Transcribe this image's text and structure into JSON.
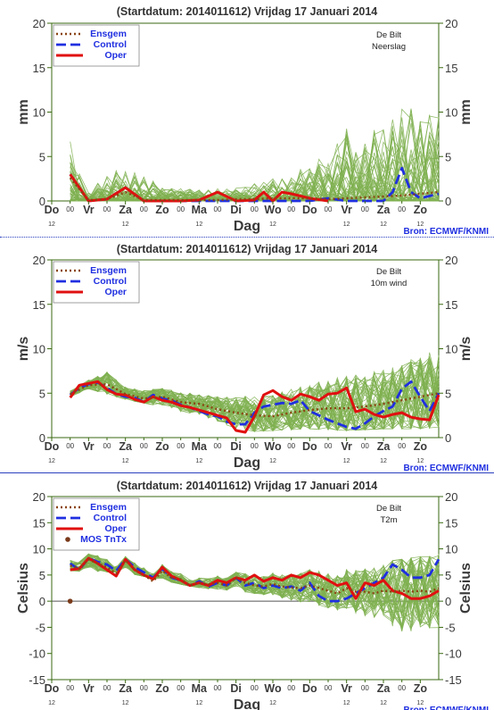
{
  "panels": [
    {
      "title": "(Startdatum: 2014011612)   Vrijdag   17 Januari   2014",
      "location": "De Bilt",
      "variable": "Neerslag",
      "ylabel": "mm",
      "xlabel": "Dag",
      "source": "Bron: ECMWF/KNMI",
      "legend": [
        "Ensgem",
        "Control",
        "Oper"
      ]
    },
    {
      "title": "(Startdatum: 2014011612)   Vrijdag   17 Januari   2014",
      "location": "De Bilt",
      "variable": "10m wind",
      "ylabel": "m/s",
      "xlabel": "Dag",
      "source": "Bron: ECMWF/KNMI",
      "legend": [
        "Ensgem",
        "Control",
        "Oper"
      ]
    },
    {
      "title": "(Startdatum: 2014011612)   Vrijdag   17 Januari   2014",
      "location": "De Bilt",
      "variable": "T2m",
      "ylabel": "Celsius",
      "xlabel": "Dag",
      "source": "Bron: ECMWF/KNMI",
      "legend": [
        "Ensgem",
        "Control",
        "Oper",
        "MOS TnTx"
      ]
    }
  ],
  "chart_data": [
    {
      "type": "line",
      "title": "(Startdatum: 2014011612)   Vrijdag   17 Januari   2014",
      "ylabel": "mm",
      "xlabel": "Dag",
      "ylim": [
        0,
        20
      ],
      "yticks": [
        0,
        5,
        10,
        15,
        20
      ],
      "day_labels": [
        "Do",
        "Vr",
        "Za",
        "Zo",
        "Ma",
        "Di",
        "Wo",
        "Do",
        "Vr",
        "Za",
        "Zo"
      ],
      "mid_label": "00",
      "hour_label": "12",
      "x_unit": "days since start",
      "grid": false,
      "legend_position": "top-left",
      "colors": {
        "ensgem": "#8b4513",
        "control": "#1f2fe0",
        "oper": "#e01010",
        "ensemble": "#7fb050",
        "axis": "#3a6a10"
      },
      "series": [
        {
          "name": "Ensgem",
          "style": "dotted",
          "x": [
            0.5,
            1,
            1.5,
            2,
            2.5,
            3,
            3.5,
            4,
            4.5,
            5,
            5.5,
            6,
            6.5,
            7,
            7.5,
            8,
            8.5,
            9,
            9.5,
            10,
            10.5
          ],
          "values": [
            2.6,
            0.1,
            0.2,
            1.0,
            0.1,
            0.1,
            0.1,
            0.1,
            0.1,
            0.2,
            0.2,
            0.3,
            0.3,
            0.3,
            0.2,
            0.3,
            0.4,
            0.5,
            0.6,
            0.8,
            1.0
          ]
        },
        {
          "name": "Control",
          "style": "dashed",
          "x": [
            0.5,
            1,
            1.5,
            2,
            2.5,
            3,
            3.5,
            4,
            4.5,
            5,
            5.5,
            6,
            6.5,
            7,
            7.5,
            8,
            8.5,
            9,
            9.25,
            9.5,
            9.75,
            10,
            10.5
          ],
          "values": [
            3.0,
            0.0,
            0.2,
            1.5,
            0.0,
            0.0,
            0.0,
            0.0,
            0.0,
            0.0,
            0.0,
            0.0,
            0.0,
            0.0,
            0.3,
            0.0,
            0.0,
            0.0,
            1.0,
            3.7,
            1.0,
            0.3,
            0.8
          ]
        },
        {
          "name": "Oper",
          "style": "solid",
          "x": [
            0.5,
            0.75,
            1,
            1.5,
            2,
            2.5,
            3,
            3.5,
            4,
            4.5,
            5,
            5.5,
            5.75,
            6,
            6.25,
            6.5,
            7,
            7.5
          ],
          "values": [
            3.0,
            1.5,
            0.0,
            0.2,
            1.5,
            0.0,
            0.0,
            0.0,
            0.1,
            1.0,
            0.0,
            0.1,
            1.0,
            0.0,
            1.0,
            0.8,
            0.3,
            0.0
          ]
        },
        {
          "name": "Ensemble spread (lower)",
          "style": "band",
          "x": [
            0.5,
            5,
            10.5
          ],
          "values": [
            0,
            0,
            0
          ]
        },
        {
          "name": "Ensemble spread (upper)",
          "style": "band",
          "x": [
            0.5,
            1,
            2,
            3,
            4,
            5,
            6,
            6.5,
            7,
            7.5,
            8,
            8.5,
            9,
            9.5,
            10,
            10.5
          ],
          "values": [
            6.8,
            1.2,
            4.5,
            1.5,
            1.3,
            1.5,
            2.5,
            3.0,
            4.5,
            5.0,
            8.5,
            7.5,
            9.5,
            10.5,
            10.5,
            11.0
          ]
        }
      ]
    },
    {
      "type": "line",
      "title": "(Startdatum: 2014011612)   Vrijdag   17 Januari   2014",
      "ylabel": "m/s",
      "xlabel": "Dag",
      "ylim": [
        0,
        20
      ],
      "yticks": [
        0,
        5,
        10,
        15,
        20
      ],
      "day_labels": [
        "Do",
        "Vr",
        "Za",
        "Zo",
        "Ma",
        "Di",
        "Wo",
        "Do",
        "Vr",
        "Za",
        "Zo"
      ],
      "mid_label": "00",
      "hour_label": "12",
      "x_unit": "days since start",
      "grid": false,
      "legend_position": "top-left",
      "colors": {
        "ensgem": "#8b4513",
        "control": "#1f2fe0",
        "oper": "#e01010",
        "ensemble": "#7fb050",
        "axis": "#3a6a10"
      },
      "series": [
        {
          "name": "Ensgem",
          "style": "dotted",
          "x": [
            0.5,
            1,
            1.5,
            2,
            2.5,
            3,
            3.5,
            4,
            4.5,
            5,
            5.5,
            6,
            6.5,
            7,
            7.5,
            8,
            8.5,
            9,
            9.5,
            10,
            10.5
          ],
          "values": [
            4.9,
            5.9,
            6.0,
            4.9,
            4.4,
            4.6,
            4.0,
            3.8,
            3.2,
            2.8,
            2.5,
            2.4,
            2.8,
            3.1,
            3.3,
            3.3,
            3.5,
            3.8,
            4.2,
            4.6,
            5.0
          ]
        },
        {
          "name": "Control",
          "style": "dashed",
          "x": [
            0.5,
            0.75,
            1,
            1.25,
            1.5,
            1.75,
            2,
            2.25,
            2.5,
            2.75,
            3,
            3.25,
            3.5,
            3.75,
            4,
            4.25,
            4.5,
            4.75,
            5,
            5.25,
            5.5,
            5.75,
            6,
            6.25,
            6.5,
            6.75,
            7,
            7.25,
            7.5,
            7.75,
            8,
            8.25,
            8.5,
            8.75,
            9,
            9.25,
            9.5,
            9.75,
            10,
            10.25,
            10.5
          ],
          "values": [
            4.8,
            5.6,
            6.0,
            6.2,
            5.6,
            4.9,
            4.6,
            4.5,
            4.0,
            4.8,
            4.4,
            4.2,
            3.7,
            3.4,
            3.0,
            2.6,
            2.4,
            1.8,
            1.5,
            1.5,
            2.8,
            3.5,
            3.7,
            3.9,
            3.8,
            4.2,
            3.0,
            2.5,
            2.0,
            1.6,
            1.2,
            1.0,
            1.6,
            2.4,
            3.0,
            3.5,
            5.5,
            6.3,
            4.6,
            3.0,
            5.0
          ]
        },
        {
          "name": "Oper",
          "style": "solid",
          "x": [
            0.5,
            0.75,
            1,
            1.25,
            1.5,
            1.75,
            2,
            2.25,
            2.5,
            2.75,
            3,
            3.25,
            3.5,
            3.75,
            4,
            4.25,
            4.5,
            4.75,
            5,
            5.25,
            5.5,
            5.75,
            6,
            6.25,
            6.5,
            6.75,
            7,
            7.25,
            7.5,
            7.75,
            8,
            8.25,
            8.5,
            8.75,
            9,
            9.25,
            9.5,
            9.75,
            10,
            10.25,
            10.5
          ],
          "values": [
            4.5,
            5.9,
            6.1,
            6.3,
            5.4,
            4.9,
            4.8,
            4.3,
            4.0,
            4.6,
            4.2,
            4.0,
            3.6,
            3.4,
            3.1,
            2.8,
            2.5,
            2.2,
            0.8,
            0.6,
            2.4,
            4.8,
            5.3,
            4.6,
            4.2,
            4.9,
            4.6,
            4.2,
            4.9,
            5.0,
            5.6,
            2.9,
            3.2,
            2.6,
            2.3,
            2.6,
            2.8,
            2.3,
            2.1,
            2.0,
            4.8
          ]
        },
        {
          "name": "Ensemble spread (lower)",
          "style": "band",
          "x": [
            0.5,
            1,
            2,
            3,
            4,
            4.5,
            5,
            6,
            7,
            8,
            9,
            10,
            10.5
          ],
          "values": [
            4.6,
            5.5,
            4.3,
            3.5,
            2.3,
            1.5,
            0.6,
            0.8,
            1.0,
            0.8,
            1.0,
            1.0,
            1.2
          ]
        },
        {
          "name": "Ensemble spread (upper)",
          "style": "band",
          "x": [
            0.5,
            1,
            1.5,
            2,
            3,
            4,
            5,
            6,
            7,
            8,
            9,
            10,
            10.5
          ],
          "values": [
            5.3,
            6.7,
            7.8,
            6.0,
            5.6,
            4.8,
            4.5,
            6.0,
            7.0,
            8.5,
            9.5,
            10.5,
            12.0
          ]
        }
      ]
    },
    {
      "type": "line",
      "title": "(Startdatum: 2014011612)   Vrijdag   17 Januari   2014",
      "ylabel": "Celsius",
      "xlabel": "Dag",
      "ylim": [
        -15,
        20
      ],
      "yticks": [
        -15,
        -10,
        -5,
        0,
        5,
        10,
        15,
        20
      ],
      "day_labels": [
        "Do",
        "Vr",
        "Za",
        "Zo",
        "Ma",
        "Di",
        "Wo",
        "Do",
        "Vr",
        "Za",
        "Zo"
      ],
      "mid_label": "00",
      "hour_label": "12",
      "x_unit": "days since start",
      "grid": false,
      "legend_position": "top-left",
      "colors": {
        "ensgem": "#8b4513",
        "control": "#1f2fe0",
        "oper": "#e01010",
        "ensemble": "#7fb050",
        "axis": "#3a6a10",
        "mos": "#7a3a1a"
      },
      "series": [
        {
          "name": "Ensgem",
          "style": "dotted",
          "x": [
            0.5,
            0.75,
            1,
            1.25,
            1.5,
            1.75,
            2,
            2.25,
            2.5,
            2.75,
            3,
            3.25,
            3.5,
            3.75,
            4,
            4.25,
            4.5,
            4.75,
            5,
            5.25,
            5.5,
            5.75,
            6,
            6.25,
            6.5,
            6.75,
            7,
            7.25,
            7.5,
            7.75,
            8,
            8.25,
            8.5,
            8.75,
            9,
            9.25,
            9.5,
            9.75,
            10,
            10.25,
            10.5
          ],
          "values": [
            6.8,
            6.2,
            8.0,
            7.2,
            6.5,
            5.3,
            7.8,
            6.0,
            5.0,
            3.8,
            5.8,
            4.5,
            4.2,
            3.0,
            3.5,
            3.2,
            3.5,
            3.0,
            4.5,
            3.5,
            3.0,
            2.8,
            3.3,
            2.8,
            2.6,
            2.5,
            3.0,
            2.5,
            2.0,
            1.5,
            2.5,
            1.8,
            1.8,
            1.5,
            2.0,
            1.8,
            2.0,
            1.8,
            2.0,
            1.8,
            2.5
          ]
        },
        {
          "name": "Control",
          "style": "dashed",
          "x": [
            0.5,
            0.75,
            1,
            1.25,
            1.5,
            1.75,
            2,
            2.25,
            2.5,
            2.75,
            3,
            3.25,
            3.5,
            3.75,
            4,
            4.25,
            4.5,
            4.75,
            5,
            5.25,
            5.5,
            5.75,
            6,
            6.25,
            6.5,
            6.75,
            7,
            7.25,
            7.5,
            7.75,
            8,
            8.25,
            8.5,
            8.75,
            9,
            9.25,
            9.5,
            9.75,
            10,
            10.25,
            10.5
          ],
          "values": [
            7.2,
            6.0,
            8.2,
            7.5,
            7.0,
            5.8,
            8.0,
            6.5,
            5.5,
            4.5,
            6.2,
            4.5,
            4.0,
            3.0,
            3.8,
            2.8,
            3.5,
            3.0,
            4.5,
            3.0,
            3.5,
            2.5,
            3.0,
            2.5,
            2.8,
            2.0,
            3.5,
            1.0,
            0.0,
            0.0,
            0.5,
            1.5,
            2.5,
            3.5,
            4.5,
            7.0,
            6.0,
            4.5,
            4.5,
            5.0,
            8.0
          ]
        },
        {
          "name": "Oper",
          "style": "solid",
          "x": [
            0.5,
            0.75,
            1,
            1.25,
            1.5,
            1.75,
            2,
            2.25,
            2.5,
            2.75,
            3,
            3.25,
            3.5,
            3.75,
            4,
            4.25,
            4.5,
            4.75,
            5,
            5.25,
            5.5,
            5.75,
            6,
            6.25,
            6.5,
            6.75,
            7,
            7.25,
            7.5,
            7.75,
            8,
            8.25,
            8.5,
            8.75,
            9,
            9.25,
            9.5,
            9.75,
            10,
            10.25,
            10.5
          ],
          "values": [
            6.0,
            6.2,
            8.2,
            7.2,
            6.0,
            4.8,
            8.0,
            6.0,
            5.0,
            4.2,
            6.5,
            4.8,
            4.0,
            3.0,
            3.5,
            3.0,
            4.0,
            3.5,
            4.5,
            4.0,
            5.0,
            3.8,
            4.5,
            4.0,
            5.0,
            4.5,
            5.5,
            5.0,
            4.0,
            3.0,
            3.5,
            0.5,
            3.5,
            3.0,
            4.0,
            2.0,
            1.5,
            0.5,
            0.5,
            1.0,
            2.0
          ]
        },
        {
          "name": "Ensemble spread (lower)",
          "style": "band",
          "x": [
            0.5,
            2,
            4,
            5,
            6,
            7,
            8,
            9,
            9.5,
            10,
            10.5
          ],
          "values": [
            5.8,
            5.5,
            2.5,
            2.0,
            1.0,
            -0.5,
            -2.0,
            -3.5,
            -9.0,
            -6.5,
            -7.0
          ]
        },
        {
          "name": "Ensemble spread (upper)",
          "style": "band",
          "x": [
            0.5,
            1,
            2,
            3,
            4,
            5,
            6,
            7,
            8,
            9,
            10,
            10.5
          ],
          "values": [
            8.0,
            9.0,
            8.5,
            7.0,
            4.5,
            5.5,
            5.5,
            6.0,
            6.5,
            7.5,
            8.5,
            9.0
          ]
        }
      ],
      "markers": {
        "name": "MOS TnTx",
        "x": [
          0.5
        ],
        "values": [
          0.0
        ]
      }
    }
  ]
}
